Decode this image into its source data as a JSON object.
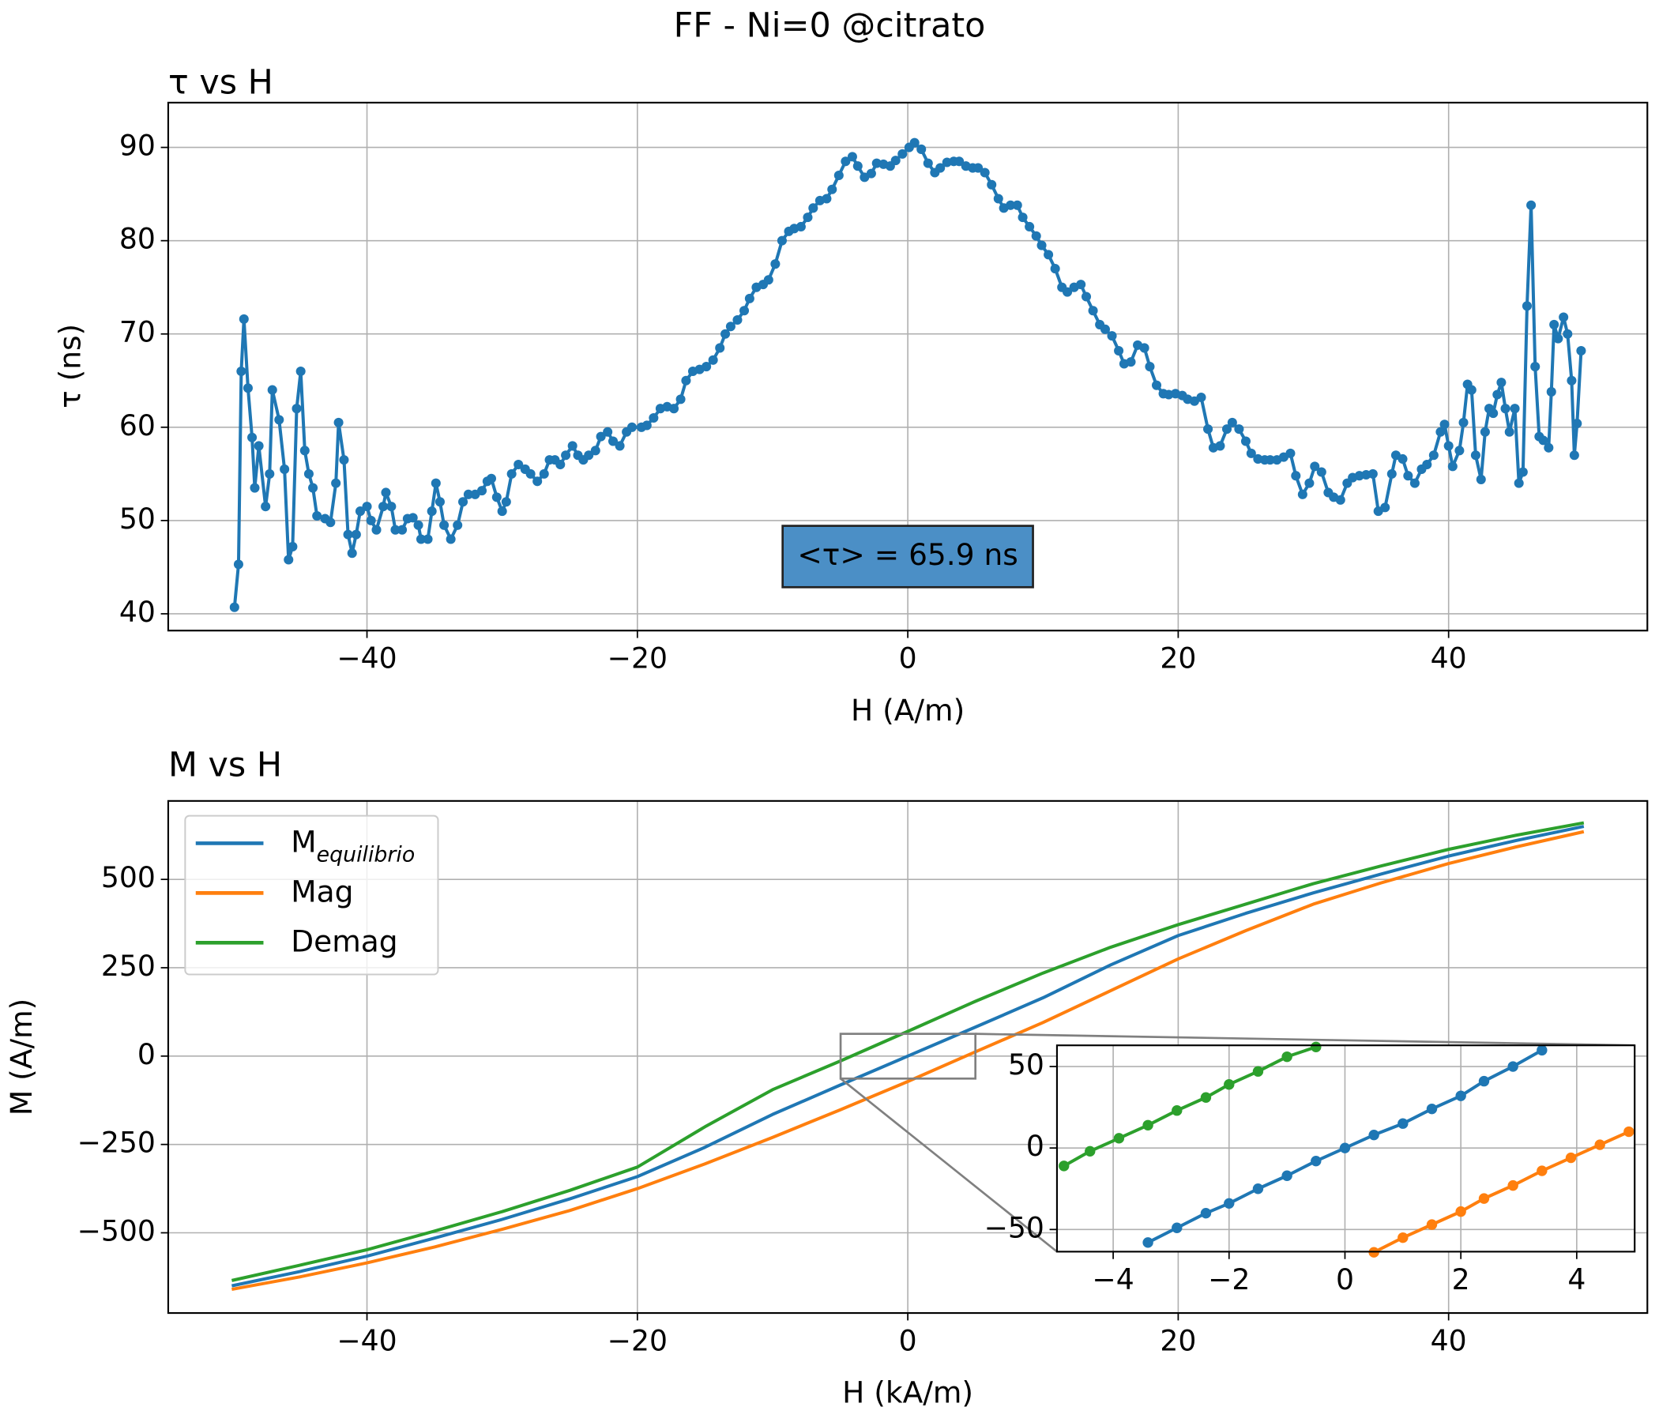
{
  "title": "FF - Ni=0 @citrato",
  "chart_data": [
    {
      "type": "line",
      "title": "τ vs H",
      "xlabel": "H (A/m)",
      "ylabel": "τ (ns)",
      "annotation": "<τ> = 65.9 ns",
      "grid": true,
      "markers": true,
      "xlim": [
        -54.7,
        54.7
      ],
      "ylim": [
        38.2,
        94.8
      ],
      "xticks": [
        {
          "value": -40,
          "label": "−40"
        },
        {
          "value": -20,
          "label": "−20"
        },
        0,
        20,
        40
      ],
      "yticks": [
        40,
        50,
        60,
        70,
        80,
        90
      ],
      "x": [
        -49.8,
        -49.5,
        -49.3,
        -49.1,
        -48.8,
        -48.5,
        -48.3,
        -48.0,
        -47.5,
        -47.2,
        -47.0,
        -46.5,
        -46.1,
        -45.8,
        -45.5,
        -45.2,
        -44.9,
        -44.6,
        -44.3,
        -44.0,
        -43.7,
        -43.1,
        -42.7,
        -42.3,
        -42.1,
        -41.7,
        -41.4,
        -41.1,
        -40.8,
        -40.5,
        -40.0,
        -39.7,
        -39.3,
        -38.8,
        -38.6,
        -38.2,
        -37.9,
        -37.4,
        -37.0,
        -36.6,
        -36.2,
        -36.0,
        -35.5,
        -35.2,
        -34.9,
        -34.6,
        -34.3,
        -33.8,
        -33.3,
        -32.9,
        -32.5,
        -32.0,
        -31.5,
        -31.1,
        -30.8,
        -30.4,
        -30.0,
        -29.7,
        -29.3,
        -28.8,
        -28.3,
        -27.9,
        -27.4,
        -26.9,
        -26.5,
        -26.1,
        -25.7,
        -25.3,
        -24.8,
        -24.4,
        -24.0,
        -23.6,
        -23.1,
        -22.7,
        -22.2,
        -21.8,
        -21.3,
        -20.8,
        -20.4,
        -19.7,
        -19.3,
        -18.8,
        -18.3,
        -17.8,
        -17.3,
        -16.8,
        -16.4,
        -15.9,
        -15.4,
        -14.9,
        -14.4,
        -13.9,
        -13.5,
        -13.1,
        -12.6,
        -12.1,
        -11.7,
        -11.2,
        -10.7,
        -10.3,
        -9.8,
        -9.3,
        -8.8,
        -8.4,
        -7.9,
        -7.4,
        -7.0,
        -6.5,
        -6.0,
        -5.6,
        -5.1,
        -4.6,
        -4.1,
        -3.7,
        -3.2,
        -2.7,
        -2.3,
        -1.8,
        -1.3,
        -0.9,
        -0.4,
        0.1,
        0.5,
        1.0,
        1.5,
        2.0,
        2.4,
        2.9,
        3.4,
        3.8,
        4.3,
        4.8,
        5.2,
        5.7,
        6.2,
        6.7,
        7.1,
        7.6,
        8.1,
        8.5,
        9.0,
        9.5,
        9.9,
        10.4,
        10.9,
        11.4,
        11.8,
        12.3,
        12.8,
        13.2,
        13.7,
        14.2,
        14.6,
        15.1,
        15.6,
        16.0,
        16.5,
        17.0,
        17.5,
        17.9,
        18.4,
        18.9,
        19.3,
        19.8,
        20.3,
        20.7,
        21.2,
        21.7,
        22.2,
        22.6,
        23.1,
        23.6,
        24.0,
        24.5,
        25.0,
        25.4,
        25.9,
        26.4,
        26.8,
        27.3,
        27.8,
        28.3,
        28.7,
        29.2,
        29.7,
        30.1,
        30.6,
        31.1,
        31.5,
        32.0,
        32.5,
        32.9,
        33.4,
        33.9,
        34.4,
        34.8,
        35.3,
        35.8,
        36.1,
        36.6,
        37.0,
        37.5,
        38.0,
        38.4,
        38.9,
        39.4,
        39.7,
        40.0,
        40.3,
        40.8,
        41.1,
        41.4,
        41.7,
        42.0,
        42.4,
        42.7,
        43.0,
        43.3,
        43.6,
        43.9,
        44.2,
        44.5,
        44.9,
        45.2,
        45.5,
        45.8,
        46.1,
        46.4,
        46.7,
        47.0,
        47.4,
        47.6,
        47.8,
        48.1,
        48.5,
        48.8,
        49.1,
        49.3,
        49.5,
        49.8
      ],
      "series": [
        {
          "color": "#1f77b4",
          "values": [
            40.7,
            45.3,
            66,
            71.6,
            64.2,
            58.9,
            53.5,
            58,
            51.5,
            55,
            64,
            60.8,
            55.5,
            45.8,
            47.2,
            62,
            66,
            57.5,
            55,
            53.5,
            50.5,
            50.2,
            49.8,
            54,
            60.5,
            56.5,
            48.5,
            46.5,
            48.5,
            51,
            51.5,
            50,
            49,
            51.5,
            53,
            51.5,
            49,
            49,
            50.2,
            50.3,
            49.5,
            48,
            48,
            51,
            54,
            52,
            49.5,
            48,
            49.5,
            52,
            52.8,
            52.8,
            53.2,
            54.2,
            54.5,
            52.5,
            51,
            52,
            55,
            56,
            55.5,
            55,
            54.2,
            55,
            56.5,
            56.5,
            56,
            57,
            58,
            57,
            56.5,
            57,
            57.5,
            59,
            59.5,
            58.5,
            58,
            59.5,
            60,
            60,
            60.2,
            61,
            62,
            62.2,
            62,
            63,
            65,
            66,
            66.2,
            66.5,
            67.2,
            68.5,
            70,
            70.8,
            71.5,
            72.5,
            73.8,
            75,
            75.3,
            75.8,
            77.5,
            80,
            81,
            81.3,
            81.5,
            82.5,
            83.5,
            84.3,
            84.5,
            85.5,
            87,
            88.5,
            89,
            88,
            86.8,
            87.2,
            88.3,
            88.2,
            88,
            88.6,
            89.3,
            90,
            90.5,
            89.8,
            88.3,
            87.3,
            87.8,
            88.4,
            88.5,
            88.5,
            88,
            87.8,
            87.8,
            87.3,
            86,
            84.5,
            83.5,
            83.8,
            83.8,
            82.5,
            81.5,
            80.5,
            79.5,
            78.5,
            77,
            75,
            74.5,
            75,
            75.3,
            74,
            72.5,
            71,
            70.5,
            69.8,
            68.2,
            66.8,
            67,
            68.8,
            68.5,
            66.5,
            64.5,
            63.6,
            63.5,
            63.6,
            63.4,
            63,
            62.8,
            63.2,
            59.8,
            57.8,
            58,
            59.8,
            60.5,
            59.8,
            58.5,
            57.2,
            56.6,
            56.5,
            56.5,
            56.5,
            56.8,
            57.2,
            54.8,
            52.8,
            54,
            55.8,
            55.2,
            53,
            52.5,
            52.2,
            54,
            54.6,
            54.8,
            54.9,
            55,
            51,
            51.4,
            55,
            57,
            56.6,
            54.8,
            54,
            55.5,
            56,
            57,
            59.5,
            60.3,
            58,
            55.8,
            57.5,
            60.5,
            64.6,
            64,
            57,
            54.4,
            59.5,
            62,
            61.5,
            63.5,
            64.8,
            62,
            59.5,
            62,
            54,
            55.2,
            73,
            83.8,
            66.5,
            59,
            58.6,
            57.8,
            63.8,
            71,
            69.5,
            71.8,
            70,
            65,
            57,
            60.4,
            68.2
          ]
        }
      ]
    },
    {
      "type": "line",
      "title": "M vs H",
      "xlabel": "H (kA/m)",
      "ylabel": "M (A/m)",
      "grid": true,
      "legend": "upper left",
      "xlim": [
        -54.7,
        54.7
      ],
      "ylim": [
        -727,
        722
      ],
      "xticks": [
        {
          "value": -40,
          "label": "−40"
        },
        {
          "value": -20,
          "label": "−20"
        },
        0,
        20,
        40
      ],
      "yticks": [
        {
          "value": -500,
          "label": "−500"
        },
        {
          "value": -250,
          "label": "−250"
        },
        0,
        250,
        500
      ],
      "x": [
        -50,
        -45,
        -40,
        -35,
        -30,
        -25,
        -20,
        -15,
        -10,
        -5,
        0,
        5,
        10,
        15,
        20,
        25,
        30,
        35,
        40,
        45,
        50
      ],
      "series": [
        {
          "name": "M",
          "subscript": "equilibrio",
          "color": "#1f77b4",
          "values": [
            -650,
            -610,
            -566,
            -515,
            -462,
            -404,
            -341,
            -258,
            -165,
            -82,
            0,
            82,
            165,
            258,
            341,
            404,
            462,
            515,
            566,
            610,
            650
          ]
        },
        {
          "name": "Mag",
          "color": "#ff7f0e",
          "values": [
            -660,
            -625,
            -585,
            -540,
            -490,
            -437,
            -375,
            -305,
            -230,
            -152,
            -72,
            12,
            95,
            185,
            275,
            355,
            430,
            490,
            545,
            592,
            635
          ]
        },
        {
          "name": "Demag",
          "color": "#2ca02c",
          "values": [
            -635,
            -592,
            -548,
            -495,
            -440,
            -380,
            -314,
            -200,
            -95,
            -14,
            70,
            155,
            235,
            308,
            372,
            430,
            488,
            538,
            585,
            625,
            660
          ]
        }
      ]
    },
    {
      "type": "line",
      "grid": true,
      "markers": true,
      "xlim": [
        -4.97,
        5.0
      ],
      "ylim": [
        -63.6,
        63
      ],
      "xticks": [
        {
          "value": -4,
          "label": "−4"
        },
        {
          "value": -2,
          "label": "−2"
        },
        0,
        2,
        4
      ],
      "yticks": [
        {
          "value": -50,
          "label": "−50"
        },
        0,
        50
      ],
      "series": [
        {
          "color": "#1f77b4",
          "x": [
            -3.4,
            -2.9,
            -2.4,
            -2.0,
            -1.5,
            -1.0,
            -0.5,
            0,
            0.5,
            1.0,
            1.5,
            2.0,
            2.4,
            2.9,
            3.4
          ],
          "values": [
            -58,
            -49,
            -40,
            -34,
            -25,
            -17,
            -8,
            0,
            8,
            15,
            24,
            32,
            41,
            50,
            60
          ]
        },
        {
          "color": "#ff7f0e",
          "x": [
            0.5,
            1.0,
            1.5,
            2.0,
            2.4,
            2.9,
            3.4,
            3.9,
            4.4,
            4.9
          ],
          "values": [
            -64,
            -55,
            -47,
            -39,
            -31,
            -23,
            -14,
            -6,
            2,
            10
          ]
        },
        {
          "color": "#2ca02c",
          "x": [
            -4.85,
            -4.4,
            -3.9,
            -3.4,
            -2.9,
            -2.4,
            -2.0,
            -1.5,
            -1.0,
            -0.5
          ],
          "values": [
            -11,
            -2,
            6,
            14,
            23,
            31,
            39,
            47,
            56,
            62
          ]
        }
      ]
    }
  ]
}
